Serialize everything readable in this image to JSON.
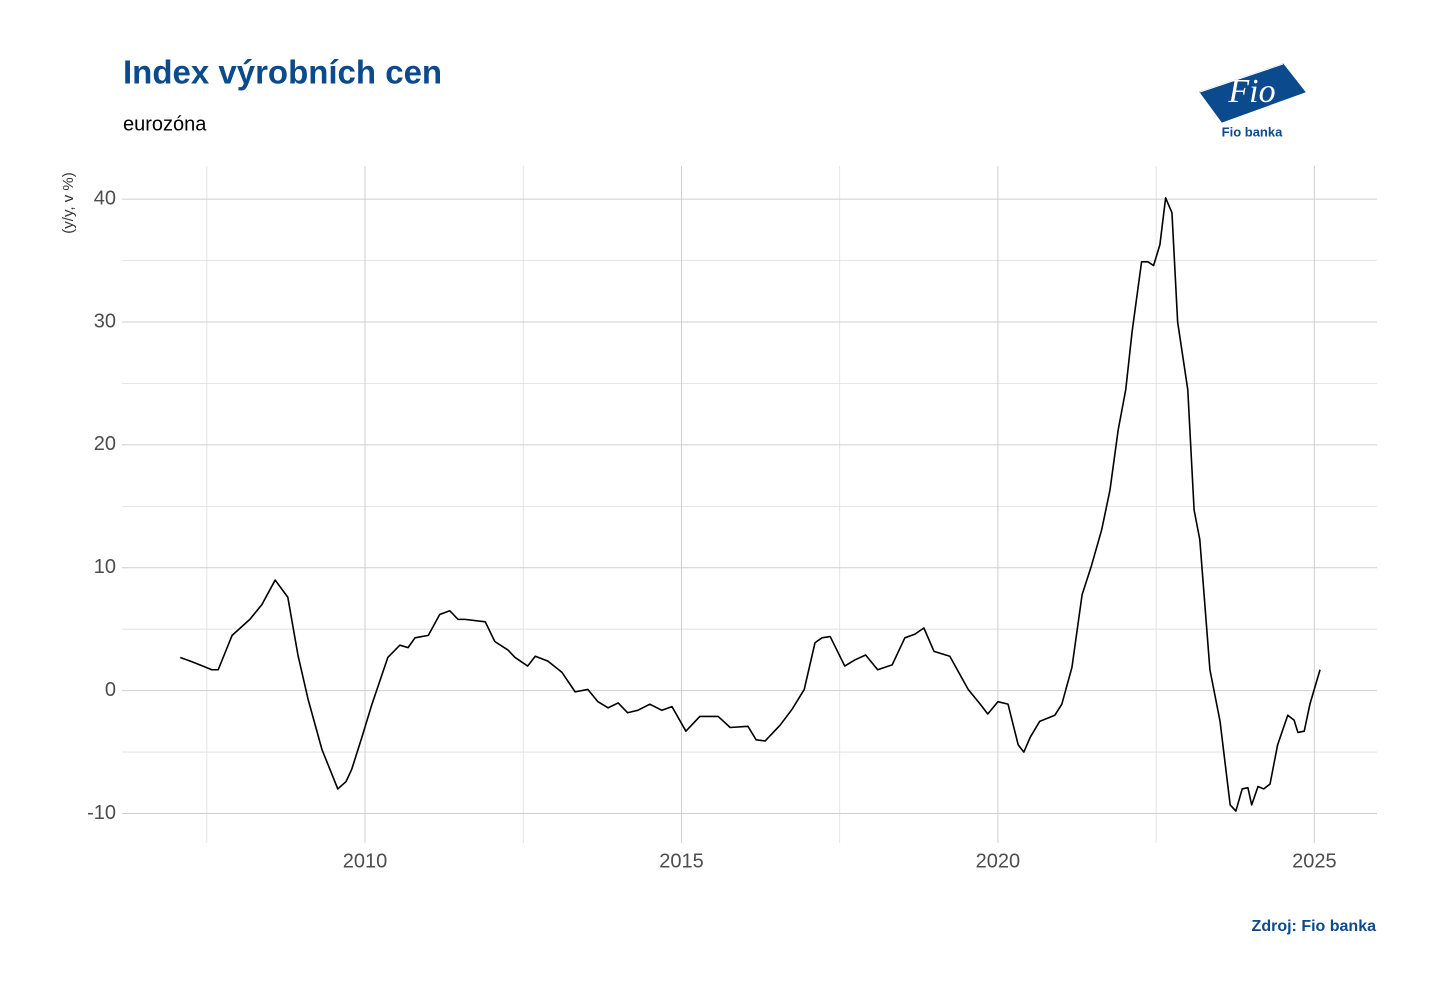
{
  "chart_data": {
    "type": "line",
    "title": "Index výrobních cen",
    "subtitle": "eurozóna",
    "y_label": "(y/y, v %)",
    "source": "Zdroj: Fio banka",
    "logo": {
      "mark": "Fio",
      "name": "Fio banka"
    },
    "xlim": [
      2006.16,
      2025.99
    ],
    "xticks": [
      2010,
      2015,
      2020,
      2025
    ],
    "ylim": [
      -12.4,
      42.7
    ],
    "yticks": [
      -10,
      0,
      10,
      20,
      30,
      40
    ],
    "grid": true,
    "series": [
      {
        "name": "Index výrobních cen",
        "color": "#000000",
        "x": [
          2007.08,
          2007.24,
          2007.39,
          2007.58,
          2007.68,
          2007.9,
          2008.18,
          2008.37,
          2008.58,
          2008.78,
          2008.94,
          2009.1,
          2009.32,
          2009.57,
          2009.7,
          2009.79,
          2009.95,
          2010.11,
          2010.36,
          2010.55,
          2010.68,
          2010.79,
          2011.0,
          2011.18,
          2011.34,
          2011.47,
          2011.58,
          2011.9,
          2012.05,
          2012.26,
          2012.37,
          2012.57,
          2012.69,
          2012.89,
          2013.11,
          2013.32,
          2013.52,
          2013.68,
          2013.84,
          2014.0,
          2014.15,
          2014.31,
          2014.5,
          2014.69,
          2014.85,
          2015.07,
          2015.29,
          2015.58,
          2015.77,
          2016.05,
          2016.18,
          2016.32,
          2016.56,
          2016.75,
          2016.94,
          2017.11,
          2017.22,
          2017.35,
          2017.58,
          2017.74,
          2017.91,
          2018.1,
          2018.33,
          2018.53,
          2018.69,
          2018.83,
          2018.99,
          2019.24,
          2019.53,
          2019.72,
          2019.84,
          2020.0,
          2020.16,
          2020.32,
          2020.41,
          2020.51,
          2020.66,
          2020.9,
          2021.01,
          2021.17,
          2021.33,
          2021.48,
          2021.64,
          2021.77,
          2021.9,
          2022.02,
          2022.12,
          2022.27,
          2022.37,
          2022.46,
          2022.56,
          2022.65,
          2022.75,
          2022.84,
          2023.0,
          2023.1,
          2023.19,
          2023.35,
          2023.51,
          2023.67,
          2023.76,
          2023.86,
          2023.95,
          2024.01,
          2024.11,
          2024.2,
          2024.3,
          2024.42,
          2024.58,
          2024.68,
          2024.74,
          2024.84,
          2024.93,
          2025.09
        ],
        "values": [
          2.7,
          2.4,
          2.1,
          1.7,
          1.7,
          4.5,
          5.8,
          7.0,
          9.0,
          7.6,
          2.9,
          -0.7,
          -4.8,
          -8.0,
          -7.4,
          -6.4,
          -3.8,
          -1.1,
          2.7,
          3.7,
          3.5,
          4.3,
          4.5,
          6.2,
          6.5,
          5.8,
          5.8,
          5.6,
          4.0,
          3.3,
          2.7,
          2.0,
          2.8,
          2.4,
          1.5,
          -0.1,
          0.1,
          -0.9,
          -1.4,
          -1.0,
          -1.8,
          -1.6,
          -1.1,
          -1.6,
          -1.3,
          -3.3,
          -2.1,
          -2.1,
          -3.0,
          -2.9,
          -4.0,
          -4.1,
          -2.8,
          -1.5,
          0.1,
          3.9,
          4.3,
          4.4,
          2.0,
          2.5,
          2.9,
          1.7,
          2.1,
          4.3,
          4.6,
          5.1,
          3.2,
          2.8,
          0.1,
          -1.1,
          -1.9,
          -0.9,
          -1.1,
          -4.4,
          -5.0,
          -3.8,
          -2.5,
          -2.0,
          -1.1,
          1.9,
          7.8,
          10.2,
          13.1,
          16.3,
          21.2,
          24.5,
          29.2,
          34.9,
          34.9,
          34.6,
          36.3,
          40.1,
          38.9,
          30.0,
          24.5,
          14.7,
          12.3,
          1.7,
          -2.5,
          -9.3,
          -9.8,
          -8.0,
          -7.9,
          -9.3,
          -7.8,
          -8.0,
          -7.6,
          -4.4,
          -2.0,
          -2.4,
          -3.4,
          -3.3,
          -1.1,
          1.7
        ]
      }
    ]
  }
}
